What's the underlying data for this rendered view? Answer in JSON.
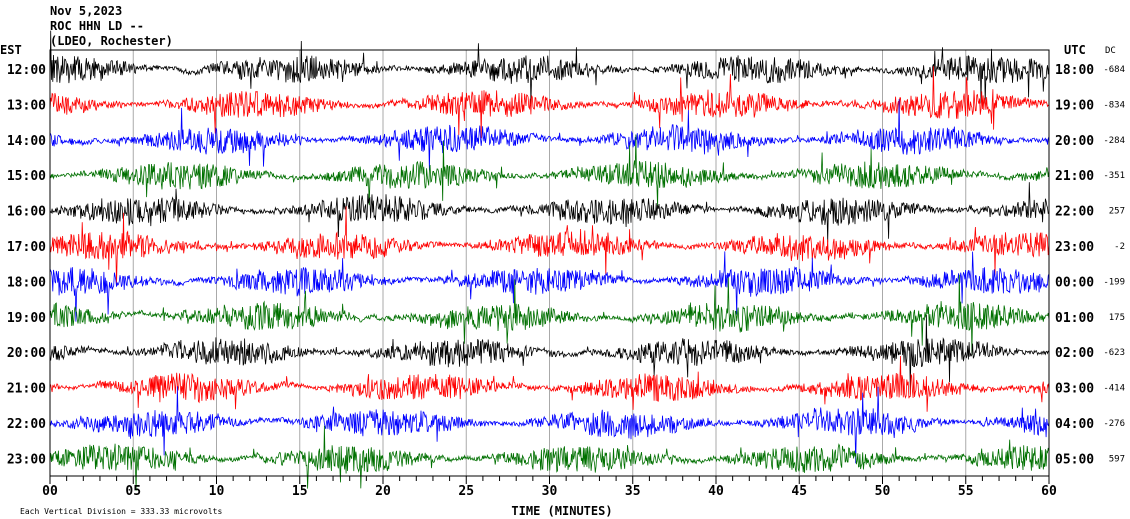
{
  "header": {
    "date": "Nov 5,2023",
    "station": "ROC HHN LD --",
    "network": "(LDEO, Rochester)"
  },
  "chart_data": {
    "type": "line",
    "title": "ROC HHN LD -- (LDEO, Rochester) Nov 5,2023",
    "xlabel": "TIME (MINUTES)",
    "xlim": [
      0,
      60
    ],
    "x_ticks": [
      "00",
      "05",
      "10",
      "15",
      "20",
      "25",
      "30",
      "35",
      "40",
      "45",
      "50",
      "55",
      "60"
    ],
    "left_axis_label": "EST",
    "right_axis_label": "UTC",
    "dc_label": "DC",
    "rows": [
      {
        "est": "12:00",
        "utc": "18:00",
        "dc": "-684",
        "color": "#000000"
      },
      {
        "est": "13:00",
        "utc": "19:00",
        "dc": "-834",
        "color": "#ff0000"
      },
      {
        "est": "14:00",
        "utc": "20:00",
        "dc": "-284",
        "color": "#0000ff"
      },
      {
        "est": "15:00",
        "utc": "21:00",
        "dc": "-351",
        "color": "#007000"
      },
      {
        "est": "16:00",
        "utc": "22:00",
        "dc": "257",
        "color": "#000000"
      },
      {
        "est": "17:00",
        "utc": "23:00",
        "dc": "-2",
        "color": "#ff0000"
      },
      {
        "est": "18:00",
        "utc": "00:00",
        "dc": "-199",
        "color": "#0000ff"
      },
      {
        "est": "19:00",
        "utc": "01:00",
        "dc": "175",
        "color": "#007000"
      },
      {
        "est": "20:00",
        "utc": "02:00",
        "dc": "-623",
        "color": "#000000"
      },
      {
        "est": "21:00",
        "utc": "03:00",
        "dc": "-414",
        "color": "#ff0000"
      },
      {
        "est": "22:00",
        "utc": "04:00",
        "dc": "-276",
        "color": "#0000ff"
      },
      {
        "est": "23:00",
        "utc": "05:00",
        "dc": "597",
        "color": "#007000"
      }
    ],
    "scale_note": "Each Vertical Division =  333.33 microvolts"
  }
}
